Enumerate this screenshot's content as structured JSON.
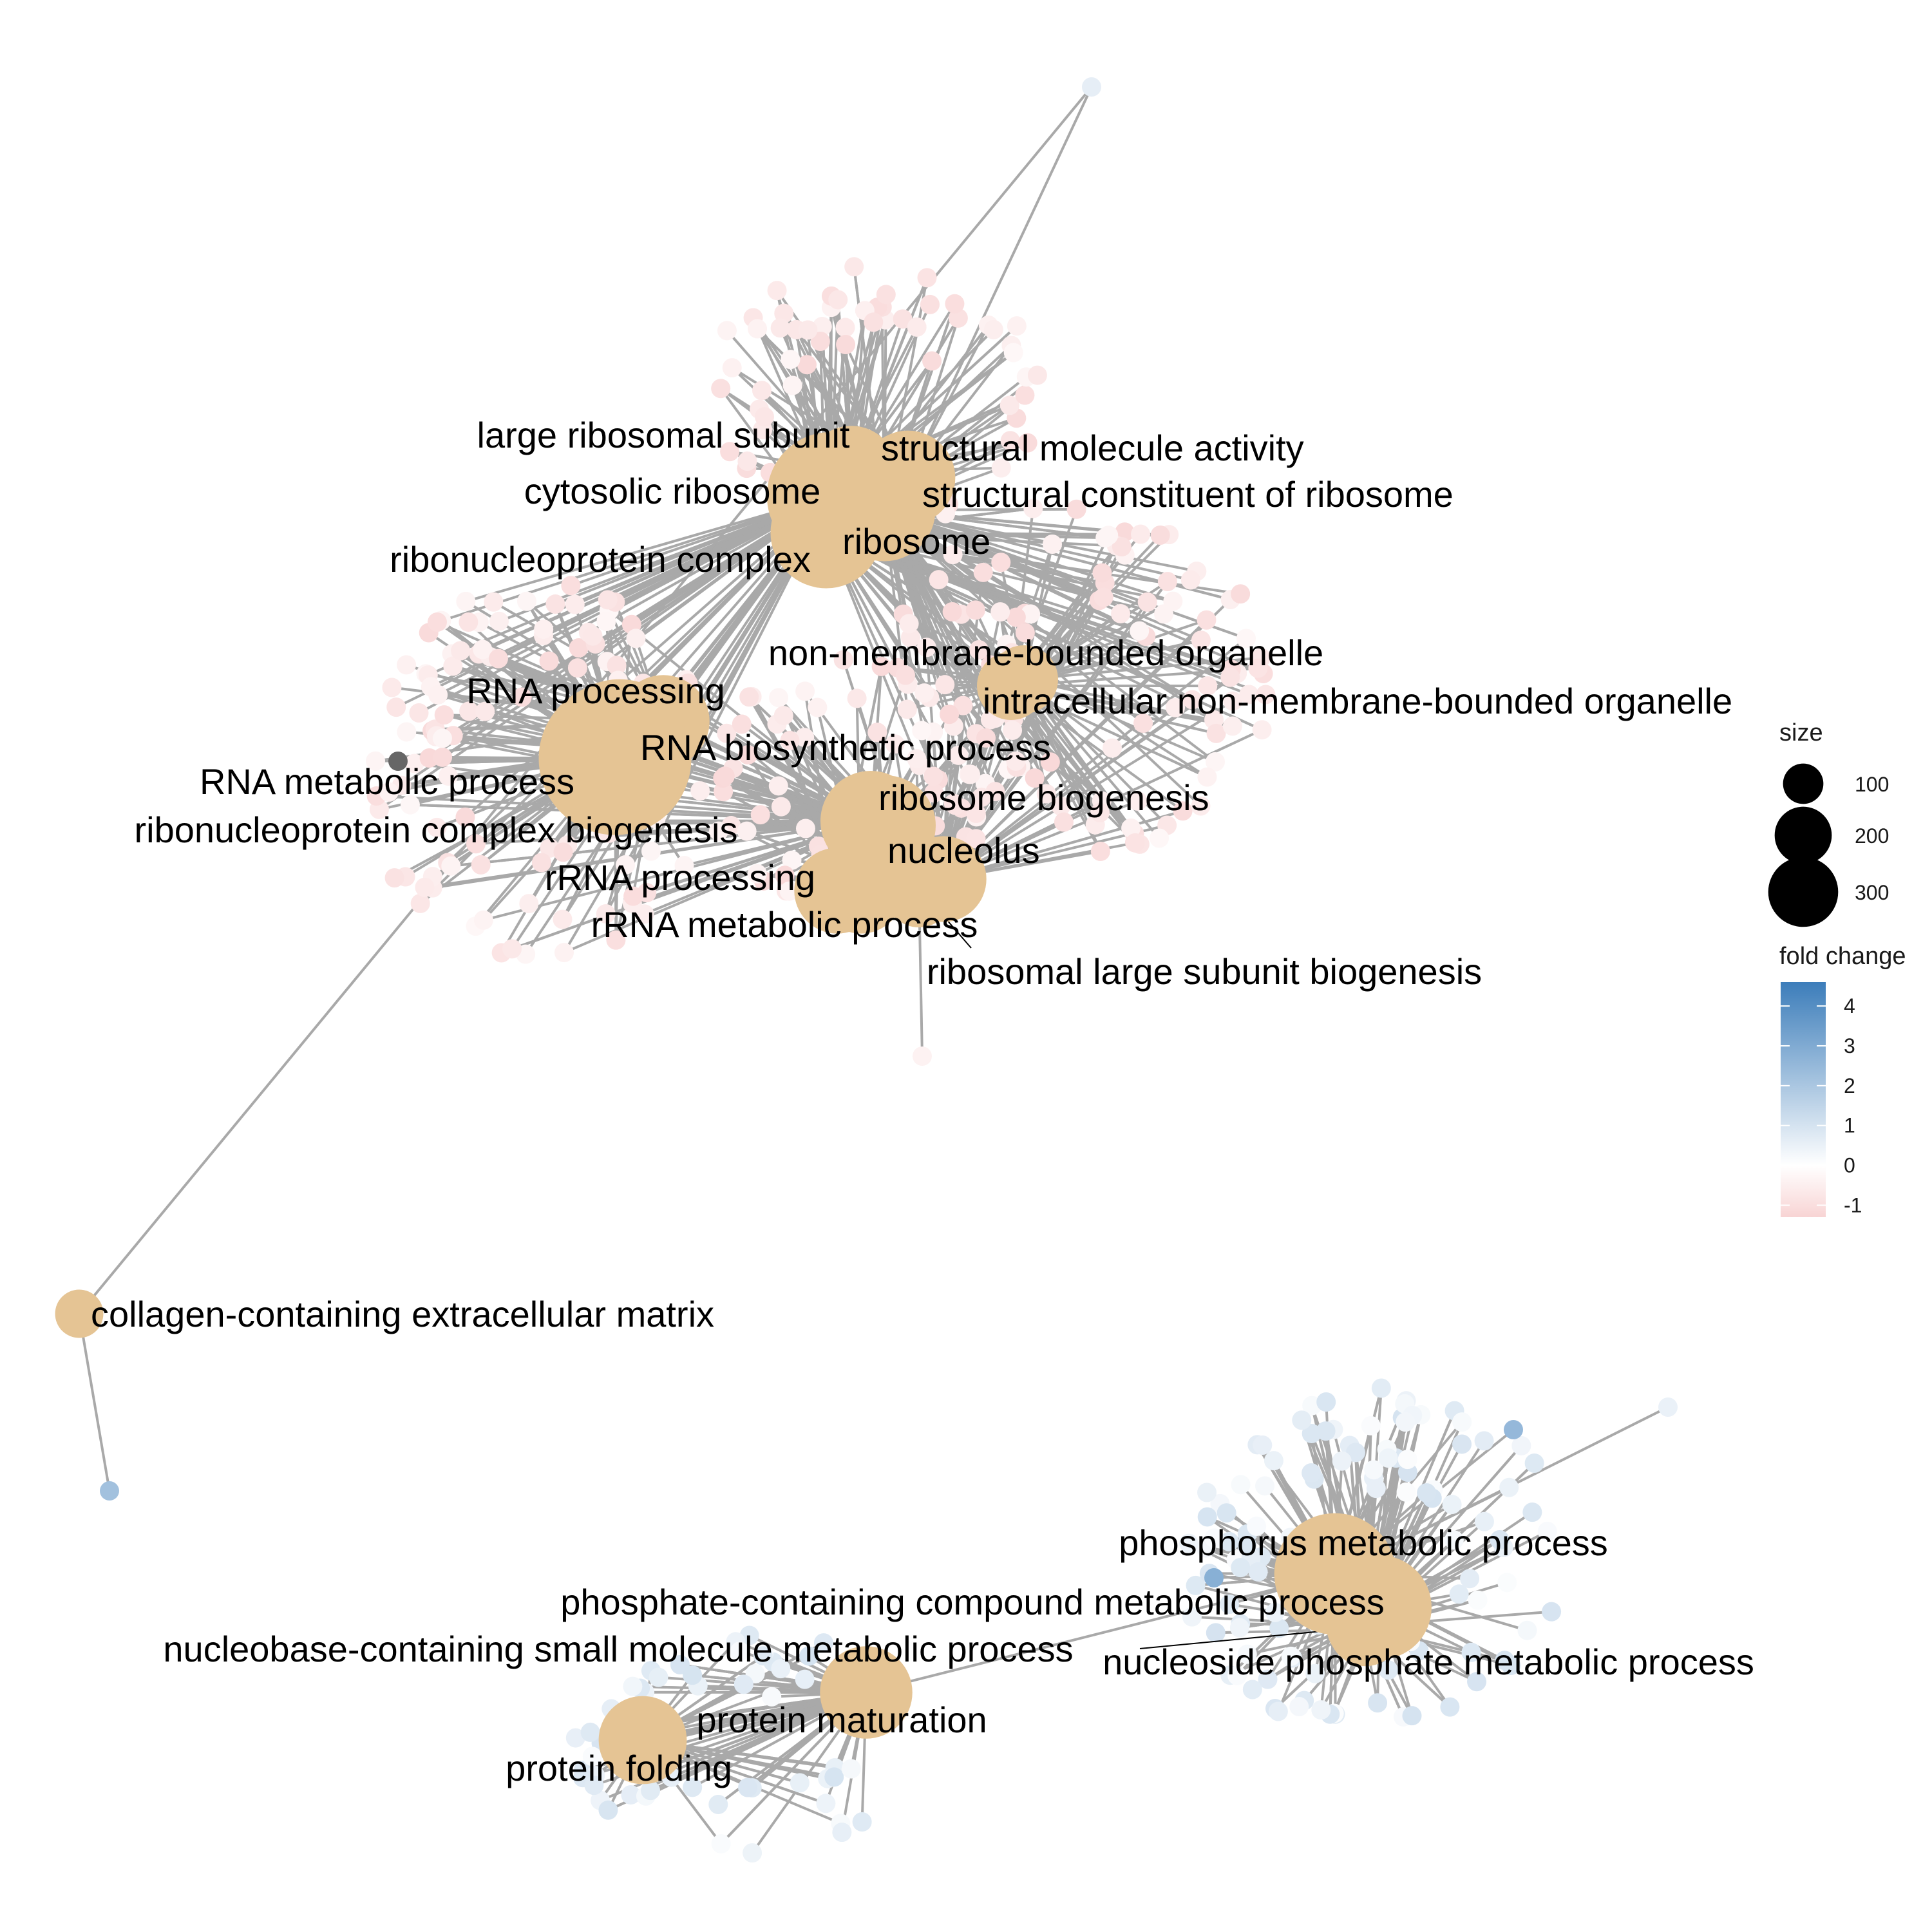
{
  "colors": {
    "edge": "#a9a9a9",
    "category": "#E5C494",
    "fold_low": "#F8D4D4",
    "fold_mid": "#FFFFFF",
    "fold_high": "#3C7DBA",
    "isolated_gene": "#666666"
  },
  "categories": [
    {
      "id": "large_ribosomal_subunit",
      "label": "large ribosomal subunit",
      "size": 110
    },
    {
      "id": "structural_molecule_activity",
      "label": "structural molecule activity",
      "size": 115
    },
    {
      "id": "cytosolic_ribosome",
      "label": "cytosolic ribosome",
      "size": 125
    },
    {
      "id": "structural_constituent_of_ribosome",
      "label": "structural constituent of ribosome",
      "size": 135
    },
    {
      "id": "ribosome",
      "label": "ribosome",
      "size": 160
    },
    {
      "id": "ribonucleoprotein_complex",
      "label": "ribonucleoprotein complex",
      "size": 210
    },
    {
      "id": "non_membrane_bounded_organelle",
      "label": "non-membrane-bounded organelle",
      "size": 60
    },
    {
      "id": "intracellular_non_membrane_bounded_organelle",
      "label": "intracellular non-membrane-bounded organelle",
      "size": 60
    },
    {
      "id": "rna_processing",
      "label": "RNA processing",
      "size": 110
    },
    {
      "id": "rna_biosynthetic_process",
      "label": "RNA biosynthetic process",
      "size": 260
    },
    {
      "id": "rna_metabolic_process",
      "label": "RNA metabolic process",
      "size": 300
    },
    {
      "id": "ribosome_biogenesis",
      "label": "ribosome biogenesis",
      "size": 130
    },
    {
      "id": "ribonucleoprotein_complex_biogenesis",
      "label": "ribonucleoprotein complex biogenesis",
      "size": 130
    },
    {
      "id": "nucleolus",
      "label": "nucleolus",
      "size": 95
    },
    {
      "id": "rrna_processing",
      "label": "rRNA processing",
      "size": 95
    },
    {
      "id": "rrna_metabolic_process",
      "label": "rRNA metabolic process",
      "size": 95
    },
    {
      "id": "ribosomal_large_subunit_biogenesis",
      "label": "ribosomal large subunit biogenesis",
      "size": 60
    },
    {
      "id": "collagen_containing_extracellular_matrix",
      "label": "collagen-containing extracellular matrix",
      "size": 30
    },
    {
      "id": "phosphorus_metabolic_process",
      "label": "phosphorus metabolic process",
      "size": 190
    },
    {
      "id": "phosphate_containing_compound_metabolic_process",
      "label": "phosphate-containing compound metabolic process",
      "size": 140
    },
    {
      "id": "nucleobase_containing_small_molecule_metabolic_process",
      "label": "nucleobase-containing small molecule metabolic process",
      "size": 70
    },
    {
      "id": "nucleoside_phosphate_metabolic_process",
      "label": "nucleoside phosphate metabolic process",
      "size": 70
    },
    {
      "id": "protein_maturation",
      "label": "protein maturation",
      "size": 110
    },
    {
      "id": "protein_folding",
      "label": "protein folding",
      "size": 100
    }
  ],
  "legend": {
    "size": {
      "title": "size",
      "entries": [
        {
          "label": "100",
          "value": 100
        },
        {
          "label": "200",
          "value": 200
        },
        {
          "label": "300",
          "value": 300
        }
      ]
    },
    "fold_change": {
      "title": "fold change",
      "min": -1.3,
      "max": 4.6,
      "ticks": [
        {
          "label": "4",
          "value": 4
        },
        {
          "label": "3",
          "value": 3
        },
        {
          "label": "2",
          "value": 2
        },
        {
          "label": "1",
          "value": 1
        },
        {
          "label": "0",
          "value": 0
        },
        {
          "label": "-1",
          "value": -1
        }
      ]
    }
  }
}
